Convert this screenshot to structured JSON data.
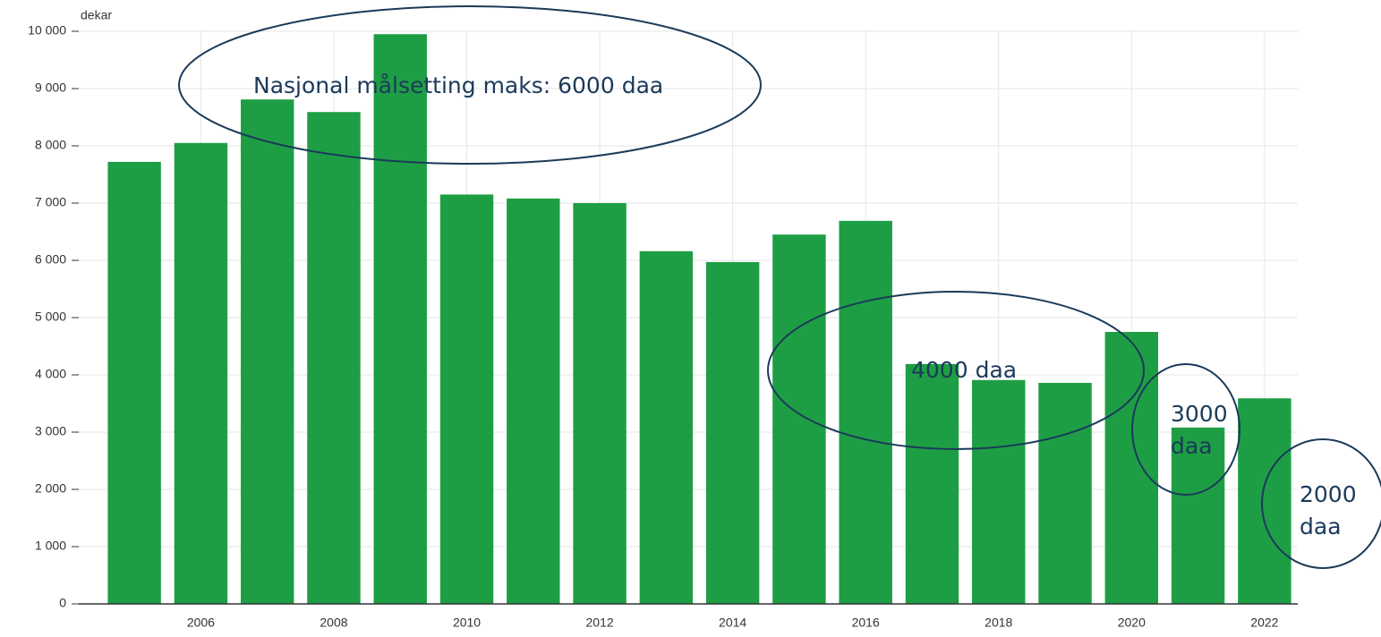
{
  "chart_data": {
    "type": "bar",
    "y_label": "dekar",
    "categories": [
      null,
      "2006",
      null,
      "2008",
      null,
      "2010",
      null,
      "2012",
      null,
      "2014",
      null,
      "2016",
      null,
      "2018",
      null,
      "2020",
      null,
      "2022"
    ],
    "values": [
      7720,
      8050,
      8810,
      8590,
      9950,
      7150,
      7080,
      7000,
      6160,
      5970,
      6450,
      6690,
      4190,
      3910,
      3860,
      4750,
      3080,
      3590
    ],
    "color": "#1e9e44",
    "ylim": [
      0,
      10000
    ],
    "yticks": [
      0,
      {
        "value": 1000,
        "label": "1 000"
      },
      {
        "value": 2000,
        "label": "2 000"
      },
      {
        "value": 3000,
        "label": "3 000"
      },
      {
        "value": 4000,
        "label": "4 000"
      },
      {
        "value": 5000,
        "label": "5 000"
      },
      {
        "value": 6000,
        "label": "6 000"
      },
      {
        "value": 7000,
        "label": "7 000"
      },
      {
        "value": 8000,
        "label": "8 000"
      },
      {
        "value": 9000,
        "label": "9 000"
      },
      {
        "value": 10000,
        "label": "10 000"
      }
    ],
    "grid": true,
    "annotations": [
      "Nasjonal målsetting maks: 6000 daa",
      "4000 daa",
      "3000 daa",
      "2000 daa"
    ]
  }
}
